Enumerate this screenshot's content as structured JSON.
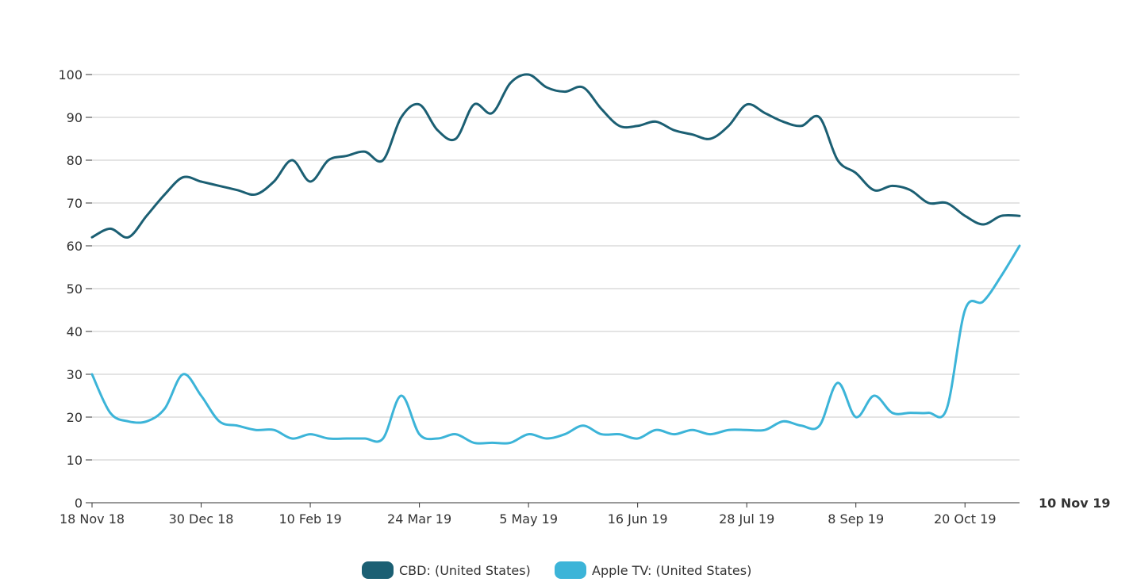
{
  "chart_data": {
    "type": "line",
    "title": "",
    "xlabel": "",
    "ylabel": "",
    "ylim": [
      0,
      100
    ],
    "yticks": [
      0,
      10,
      20,
      30,
      40,
      50,
      60,
      70,
      80,
      90,
      100
    ],
    "grid": true,
    "legend_position": "bottom-center",
    "x_ticks": [
      {
        "label": "18 Nov 18",
        "index": 0
      },
      {
        "label": "30 Dec 18",
        "index": 6
      },
      {
        "label": "10 Feb 19",
        "index": 12
      },
      {
        "label": "24 Mar 19",
        "index": 18
      },
      {
        "label": "5 May 19",
        "index": 24
      },
      {
        "label": "16 Jun 19",
        "index": 30
      },
      {
        "label": "28 Jul 19",
        "index": 36
      },
      {
        "label": "8 Sep 19",
        "index": 42
      },
      {
        "label": "20 Oct 19",
        "index": 48
      }
    ],
    "x_end_label": "10 Nov 19",
    "x_end_index": 51,
    "series": [
      {
        "name": "CBD: (United States)",
        "color": "#1b5f73",
        "values": [
          62,
          64,
          62,
          67,
          72,
          76,
          75,
          74,
          73,
          72,
          75,
          80,
          75,
          80,
          81,
          82,
          80,
          90,
          93,
          87,
          85,
          93,
          91,
          98,
          100,
          97,
          96,
          97,
          92,
          88,
          88,
          89,
          87,
          86,
          85,
          88,
          93,
          91,
          89,
          88,
          90,
          80,
          77,
          73,
          74,
          73,
          70,
          70,
          67,
          65,
          67,
          67
        ]
      },
      {
        "name": "Apple TV: (United States)",
        "color": "#3cb4d8",
        "values": [
          30,
          21,
          19,
          19,
          22,
          30,
          25,
          19,
          18,
          17,
          17,
          15,
          16,
          15,
          15,
          15,
          15,
          25,
          16,
          15,
          16,
          14,
          14,
          14,
          16,
          15,
          16,
          18,
          16,
          16,
          15,
          17,
          16,
          17,
          16,
          17,
          17,
          17,
          19,
          18,
          18,
          28,
          20,
          25,
          21,
          21,
          21,
          22,
          45,
          47,
          53,
          60
        ]
      }
    ]
  }
}
